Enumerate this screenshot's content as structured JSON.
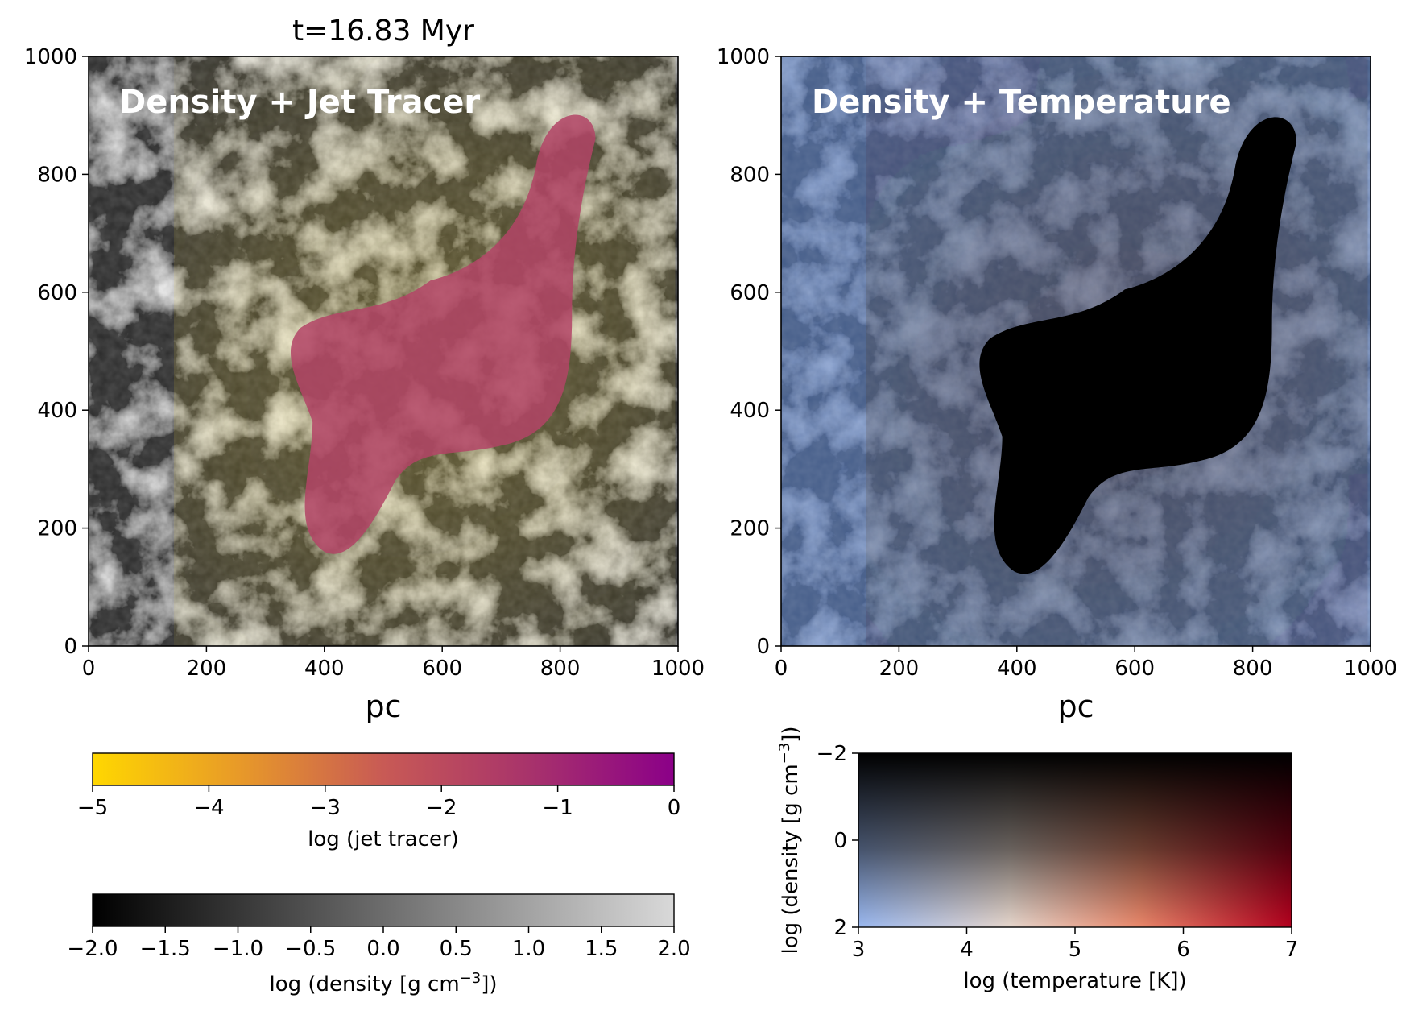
{
  "figure": {
    "time_title": "t=16.83 Myr"
  },
  "panels": [
    {
      "label": "Density + Jet Tracer",
      "xlabel": "pc",
      "x_ticks": [
        "0",
        "200",
        "400",
        "600",
        "800",
        "1000"
      ],
      "y_ticks": [
        "0",
        "200",
        "400",
        "600",
        "800",
        "1000"
      ],
      "xlim": [
        0,
        1000
      ],
      "ylim": [
        0,
        1000
      ]
    },
    {
      "label": "Density + Temperature",
      "xlabel": "pc",
      "x_ticks": [
        "0",
        "200",
        "400",
        "600",
        "800",
        "1000"
      ],
      "y_ticks": [
        "0",
        "200",
        "400",
        "600",
        "800",
        "1000"
      ],
      "xlim": [
        0,
        1000
      ],
      "ylim": [
        0,
        1000
      ]
    }
  ],
  "colorbars": {
    "jet": {
      "label": "log (jet tracer)",
      "range": [
        -5,
        0
      ],
      "ticks": [
        "−5",
        "−4",
        "−3",
        "−2",
        "−1",
        "0"
      ],
      "colors": [
        "#ffd700",
        "#e89a28",
        "#c85a55",
        "#a8336b",
        "#8b0088"
      ]
    },
    "density": {
      "label_prefix": "log (density [g cm",
      "label_exp": "−3",
      "label_suffix": "])",
      "range": [
        -2.0,
        2.0
      ],
      "ticks": [
        "−2.0",
        "−1.5",
        "−1.0",
        "−0.5",
        "0.0",
        "0.5",
        "1.0",
        "1.5",
        "2.0"
      ],
      "colors": [
        "#000000",
        "#d9d9d9"
      ]
    },
    "density_temperature": {
      "xlabel": "log (temperature [K])",
      "ylabel_prefix": "log (density [g cm",
      "ylabel_exp": "−3",
      "ylabel_suffix": "])",
      "x_ticks": [
        "3",
        "4",
        "5",
        "6",
        "7"
      ],
      "y_ticks": [
        "−2",
        "0",
        "2"
      ],
      "xlim": [
        3,
        7
      ],
      "ylim": [
        2,
        -2
      ]
    }
  }
}
